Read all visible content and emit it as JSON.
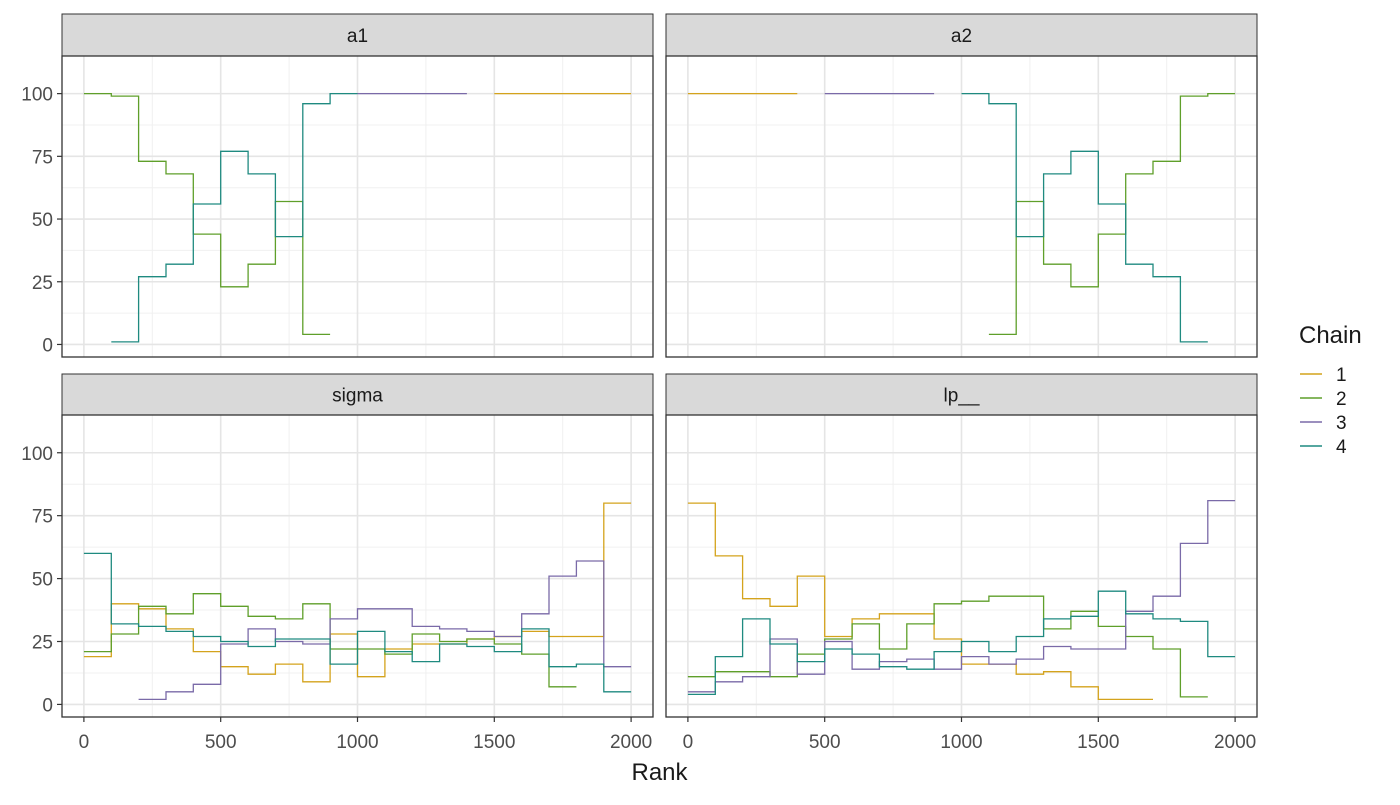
{
  "chart_data": {
    "type": "line",
    "subtype": "rank-overlay-histogram",
    "facets": [
      "a1",
      "a2",
      "sigma",
      "lp__"
    ],
    "xlabel": "Rank",
    "ylabel": "",
    "xlim": [
      -80,
      2080
    ],
    "ylim": [
      -5,
      115
    ],
    "x_ticks": [
      0,
      500,
      1000,
      1500,
      2000
    ],
    "y_ticks": [
      0,
      25,
      50,
      75,
      100
    ],
    "bin_edges": [
      0,
      100,
      200,
      300,
      400,
      500,
      600,
      700,
      800,
      900,
      1000,
      1100,
      1200,
      1300,
      1400,
      1500,
      1600,
      1700,
      1800,
      1900,
      2000
    ],
    "legend": {
      "title": "Chain",
      "position": "right",
      "entries": [
        "1",
        "2",
        "3",
        "4"
      ]
    },
    "series_colors": {
      "1": "#d4a31c",
      "2": "#5f9f2a",
      "3": "#7a6aa8",
      "4": "#1f8a80"
    },
    "grid": true,
    "panels": [
      {
        "title": "a1",
        "series": [
          {
            "chain": "1",
            "values": [
              0,
              0,
              0,
              0,
              0,
              0,
              0,
              0,
              0,
              0,
              0,
              0,
              0,
              0,
              0,
              100,
              100,
              100,
              100,
              100
            ]
          },
          {
            "chain": "2",
            "values": [
              100,
              99,
              73,
              68,
              44,
              23,
              32,
              57,
              4,
              0,
              0,
              0,
              0,
              0,
              0,
              0,
              0,
              0,
              0,
              0
            ]
          },
          {
            "chain": "3",
            "values": [
              0,
              0,
              0,
              0,
              0,
              0,
              0,
              0,
              0,
              0,
              100,
              100,
              100,
              100,
              0,
              0,
              0,
              0,
              0,
              0
            ]
          },
          {
            "chain": "4",
            "values": [
              0,
              1,
              27,
              32,
              56,
              77,
              68,
              43,
              96,
              100,
              0,
              0,
              0,
              0,
              0,
              0,
              0,
              0,
              0,
              0
            ]
          }
        ]
      },
      {
        "title": "a2",
        "series": [
          {
            "chain": "1",
            "values": [
              100,
              100,
              100,
              100,
              0,
              0,
              0,
              0,
              0,
              0,
              0,
              0,
              0,
              0,
              0,
              0,
              0,
              0,
              0,
              0
            ]
          },
          {
            "chain": "2",
            "values": [
              0,
              0,
              0,
              0,
              0,
              0,
              0,
              0,
              0,
              0,
              0,
              4,
              57,
              32,
              23,
              44,
              68,
              73,
              99,
              100
            ]
          },
          {
            "chain": "3",
            "values": [
              0,
              0,
              0,
              0,
              0,
              100,
              100,
              100,
              100,
              0,
              0,
              0,
              0,
              0,
              0,
              0,
              0,
              0,
              0,
              0
            ]
          },
          {
            "chain": "4",
            "values": [
              0,
              0,
              0,
              0,
              0,
              0,
              0,
              0,
              0,
              0,
              100,
              96,
              43,
              68,
              77,
              56,
              32,
              27,
              1,
              0
            ]
          }
        ]
      },
      {
        "title": "sigma",
        "series": [
          {
            "chain": "1",
            "values": [
              19,
              40,
              38,
              30,
              21,
              15,
              12,
              16,
              9,
              28,
              11,
              22,
              24,
              24,
              26,
              27,
              29,
              27,
              27,
              80
            ]
          },
          {
            "chain": "2",
            "values": [
              21,
              28,
              39,
              36,
              44,
              39,
              35,
              34,
              40,
              22,
              22,
              20,
              28,
              25,
              26,
              24,
              20,
              7,
              0,
              0
            ]
          },
          {
            "chain": "3",
            "values": [
              0,
              0,
              2,
              5,
              8,
              24,
              30,
              25,
              24,
              34,
              38,
              38,
              31,
              30,
              29,
              27,
              36,
              51,
              57,
              15
            ]
          },
          {
            "chain": "4",
            "values": [
              60,
              32,
              31,
              29,
              27,
              25,
              23,
              26,
              26,
              16,
              29,
              21,
              17,
              24,
              23,
              21,
              30,
              15,
              16,
              5
            ]
          }
        ]
      },
      {
        "title": "lp__",
        "series": [
          {
            "chain": "1",
            "values": [
              80,
              59,
              42,
              39,
              51,
              27,
              34,
              36,
              36,
              26,
              16,
              16,
              12,
              13,
              7,
              2,
              2,
              0,
              0,
              0
            ]
          },
          {
            "chain": "2",
            "values": [
              11,
              13,
              13,
              11,
              20,
              26,
              32,
              22,
              32,
              40,
              41,
              43,
              43,
              30,
              37,
              31,
              27,
              22,
              3,
              0
            ]
          },
          {
            "chain": "3",
            "values": [
              5,
              9,
              11,
              26,
              12,
              25,
              14,
              17,
              18,
              14,
              19,
              16,
              18,
              23,
              22,
              22,
              37,
              43,
              64,
              81
            ]
          },
          {
            "chain": "4",
            "values": [
              4,
              19,
              34,
              24,
              17,
              22,
              20,
              15,
              14,
              21,
              25,
              21,
              27,
              34,
              35,
              45,
              36,
              34,
              33,
              19
            ]
          }
        ]
      }
    ]
  }
}
